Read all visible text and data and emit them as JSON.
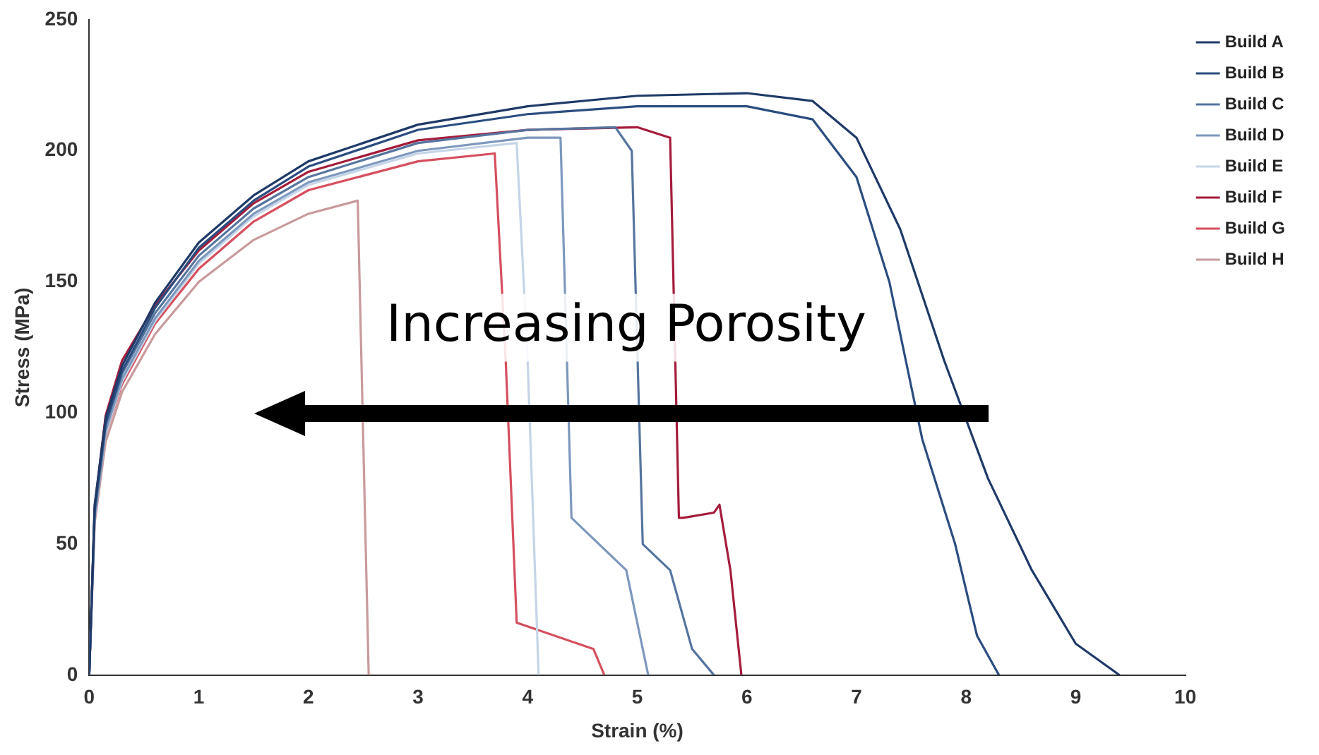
{
  "chart_data": {
    "type": "line",
    "xlabel": "Strain (%)",
    "ylabel": "Stress (MPa)",
    "xlim": [
      0,
      10
    ],
    "xticks": [
      0,
      1,
      2,
      3,
      4,
      5,
      6,
      7,
      8,
      9,
      10
    ],
    "ylim": [
      0,
      250
    ],
    "yticks": [
      0,
      50,
      100,
      150,
      200,
      250
    ],
    "grid": false,
    "legend": "top right",
    "marker": "none",
    "line_style": "solid",
    "annotations": [
      "Increasing Porosity"
    ],
    "series": [
      {
        "name": "Build A",
        "color": "#1f3a68",
        "x": [
          0,
          0.05,
          0.15,
          0.3,
          0.6,
          1,
          1.5,
          2,
          3,
          4,
          5,
          6,
          6.6,
          7,
          7.4,
          7.8,
          8.2,
          8.6,
          9,
          9.4
        ],
        "values": [
          0,
          65,
          98,
          118,
          142,
          165,
          183,
          196,
          210,
          217,
          221,
          222,
          219,
          205,
          170,
          120,
          75,
          40,
          12,
          0
        ]
      },
      {
        "name": "Build B",
        "color": "#2b4d80",
        "x": [
          0,
          0.05,
          0.15,
          0.3,
          0.6,
          1,
          1.5,
          2,
          3,
          4,
          5,
          6,
          6.6,
          7,
          7.3,
          7.6,
          7.9,
          8.1,
          8.3
        ],
        "values": [
          0,
          63,
          96,
          116,
          140,
          163,
          181,
          194,
          208,
          214,
          217,
          217,
          212,
          190,
          150,
          90,
          50,
          15,
          0
        ]
      },
      {
        "name": "Build C",
        "color": "#56759f",
        "x": [
          0,
          0.05,
          0.15,
          0.3,
          0.6,
          1,
          1.5,
          2,
          3,
          4,
          4.8,
          4.95,
          5.05,
          5.3,
          5.5,
          5.7
        ],
        "values": [
          0,
          62,
          95,
          115,
          138,
          160,
          178,
          190,
          203,
          208,
          209,
          200,
          50,
          40,
          10,
          0
        ]
      },
      {
        "name": "Build D",
        "color": "#7d98bd",
        "x": [
          0,
          0.05,
          0.15,
          0.3,
          0.6,
          1,
          1.5,
          2,
          3,
          4,
          4.3,
          4.4,
          4.9,
          5.1
        ],
        "values": [
          0,
          60,
          93,
          113,
          136,
          158,
          176,
          188,
          200,
          205,
          205,
          60,
          40,
          0
        ]
      },
      {
        "name": "Build E",
        "color": "#c5d5e8",
        "x": [
          0,
          0.05,
          0.15,
          0.3,
          0.6,
          1,
          1.5,
          2,
          3,
          3.9,
          4,
          4.1
        ],
        "values": [
          0,
          60,
          92,
          112,
          135,
          157,
          175,
          187,
          199,
          203,
          120,
          0
        ]
      },
      {
        "name": "Build F",
        "color": "#a51c3b",
        "x": [
          0,
          0.05,
          0.15,
          0.3,
          0.6,
          1,
          1.5,
          2,
          3,
          4,
          5,
          5.3,
          5.38,
          5.42,
          5.7,
          5.75,
          5.85,
          5.95
        ],
        "values": [
          0,
          64,
          99,
          120,
          141,
          162,
          180,
          192,
          204,
          208,
          209,
          205,
          60,
          60,
          62,
          65,
          40,
          0
        ]
      },
      {
        "name": "Build G",
        "color": "#d64f5e",
        "x": [
          0,
          0.05,
          0.15,
          0.3,
          0.6,
          1,
          1.5,
          2,
          3,
          3.7,
          3.8,
          3.9,
          4.6,
          4.7
        ],
        "values": [
          0,
          60,
          92,
          111,
          134,
          155,
          173,
          185,
          196,
          199,
          120,
          20,
          10,
          0
        ]
      },
      {
        "name": "Build H",
        "color": "#c99a9c",
        "x": [
          0,
          0.05,
          0.15,
          0.3,
          0.6,
          1,
          1.5,
          2,
          2.45,
          2.5,
          2.55
        ],
        "values": [
          0,
          58,
          89,
          108,
          130,
          150,
          166,
          176,
          181,
          90,
          0
        ]
      }
    ]
  }
}
